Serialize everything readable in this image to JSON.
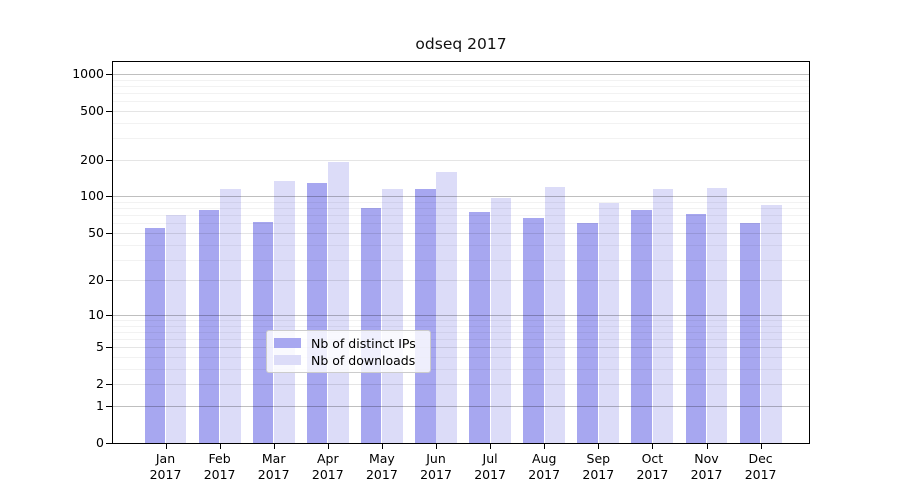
{
  "figure": {
    "title": "odseq 2017"
  },
  "chart_data": {
    "type": "bar",
    "title": "odseq 2017",
    "yscale": "log1p",
    "grid": true,
    "legend_position": "lower center inside plot",
    "ylim": [
      0,
      1250
    ],
    "yticks": [
      0,
      1,
      2,
      5,
      10,
      20,
      50,
      100,
      200,
      500,
      1000
    ],
    "strong_gridlines": [
      1,
      10,
      100,
      1000
    ],
    "minor_yticks": [
      3,
      4,
      6,
      7,
      8,
      9,
      30,
      40,
      60,
      70,
      80,
      90,
      300,
      400,
      600,
      700,
      800,
      900
    ],
    "categories": [
      {
        "month": "Jan",
        "year": "2017"
      },
      {
        "month": "Feb",
        "year": "2017"
      },
      {
        "month": "Mar",
        "year": "2017"
      },
      {
        "month": "Apr",
        "year": "2017"
      },
      {
        "month": "May",
        "year": "2017"
      },
      {
        "month": "Jun",
        "year": "2017"
      },
      {
        "month": "Jul",
        "year": "2017"
      },
      {
        "month": "Aug",
        "year": "2017"
      },
      {
        "month": "Sep",
        "year": "2017"
      },
      {
        "month": "Oct",
        "year": "2017"
      },
      {
        "month": "Nov",
        "year": "2017"
      },
      {
        "month": "Dec",
        "year": "2017"
      }
    ],
    "series": [
      {
        "name": "Nb of distinct IPs",
        "color": "#a7a7f0",
        "values": [
          55,
          78,
          62,
          128,
          80,
          115,
          75,
          67,
          61,
          77,
          72,
          60
        ]
      },
      {
        "name": "Nb of downloads",
        "color": "#dcdcf8",
        "values": [
          70,
          115,
          135,
          190,
          115,
          160,
          98,
          120,
          88,
          115,
          117,
          85
        ]
      }
    ]
  }
}
